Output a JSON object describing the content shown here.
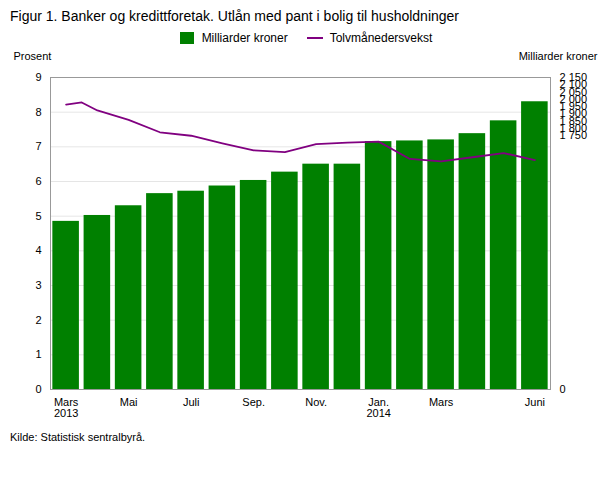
{
  "chart_data": {
    "type": "bar",
    "title": "Figur 1. Banker og kredittforetak. Utlån med pant i bolig til husholdninger",
    "source": "Kilde: Statistisk sentralbyrå.",
    "ylabel": "Prosent",
    "y2label": "Milliarder kroner",
    "categories": [
      "Mars\n2013",
      null,
      "Mai",
      null,
      "Juli",
      null,
      "Sep.",
      null,
      "Nov.",
      null,
      "Jan.\n2014",
      null,
      "Mars",
      null,
      null,
      "Juni"
    ],
    "ylim": [
      0,
      9
    ],
    "yticks": [
      0,
      1,
      2,
      3,
      4,
      5,
      6,
      7,
      8,
      9
    ],
    "y2lim": [
      0,
      2150
    ],
    "y2ticks": [
      0,
      {
        "value": 1750,
        "label": "1 750"
      },
      {
        "value": 1800,
        "label": "1 800"
      },
      {
        "value": 1850,
        "label": "1 850"
      },
      {
        "value": 1900,
        "label": "1 900"
      },
      {
        "value": 1950,
        "label": "1 950"
      },
      {
        "value": 2000,
        "label": "2 000"
      },
      {
        "value": 2050,
        "label": "2 050"
      },
      {
        "value": 2100,
        "label": "2 100"
      },
      {
        "value": 2150,
        "label": "2 150"
      }
    ],
    "grid": true,
    "series": [
      {
        "name": "Milliarder kroner",
        "type": "bar",
        "color": "#008000",
        "values": [
          4.85,
          5.02,
          5.3,
          5.65,
          5.72,
          5.87,
          6.03,
          6.27,
          6.5,
          6.5,
          7.15,
          7.17,
          7.2,
          7.38,
          7.75,
          8.3
        ]
      },
      {
        "name": "Tolvmånedersvekst",
        "type": "line",
        "color": "#800080",
        "x": [
          0,
          0.5,
          1,
          2,
          3,
          4,
          5,
          6,
          7,
          8,
          9,
          10,
          11,
          12,
          13,
          14,
          15
        ],
        "values": [
          8.22,
          8.28,
          8.05,
          7.78,
          7.42,
          7.32,
          7.1,
          6.9,
          6.85,
          7.08,
          7.12,
          7.15,
          6.65,
          6.58,
          6.7,
          6.82,
          6.62
        ]
      }
    ]
  }
}
